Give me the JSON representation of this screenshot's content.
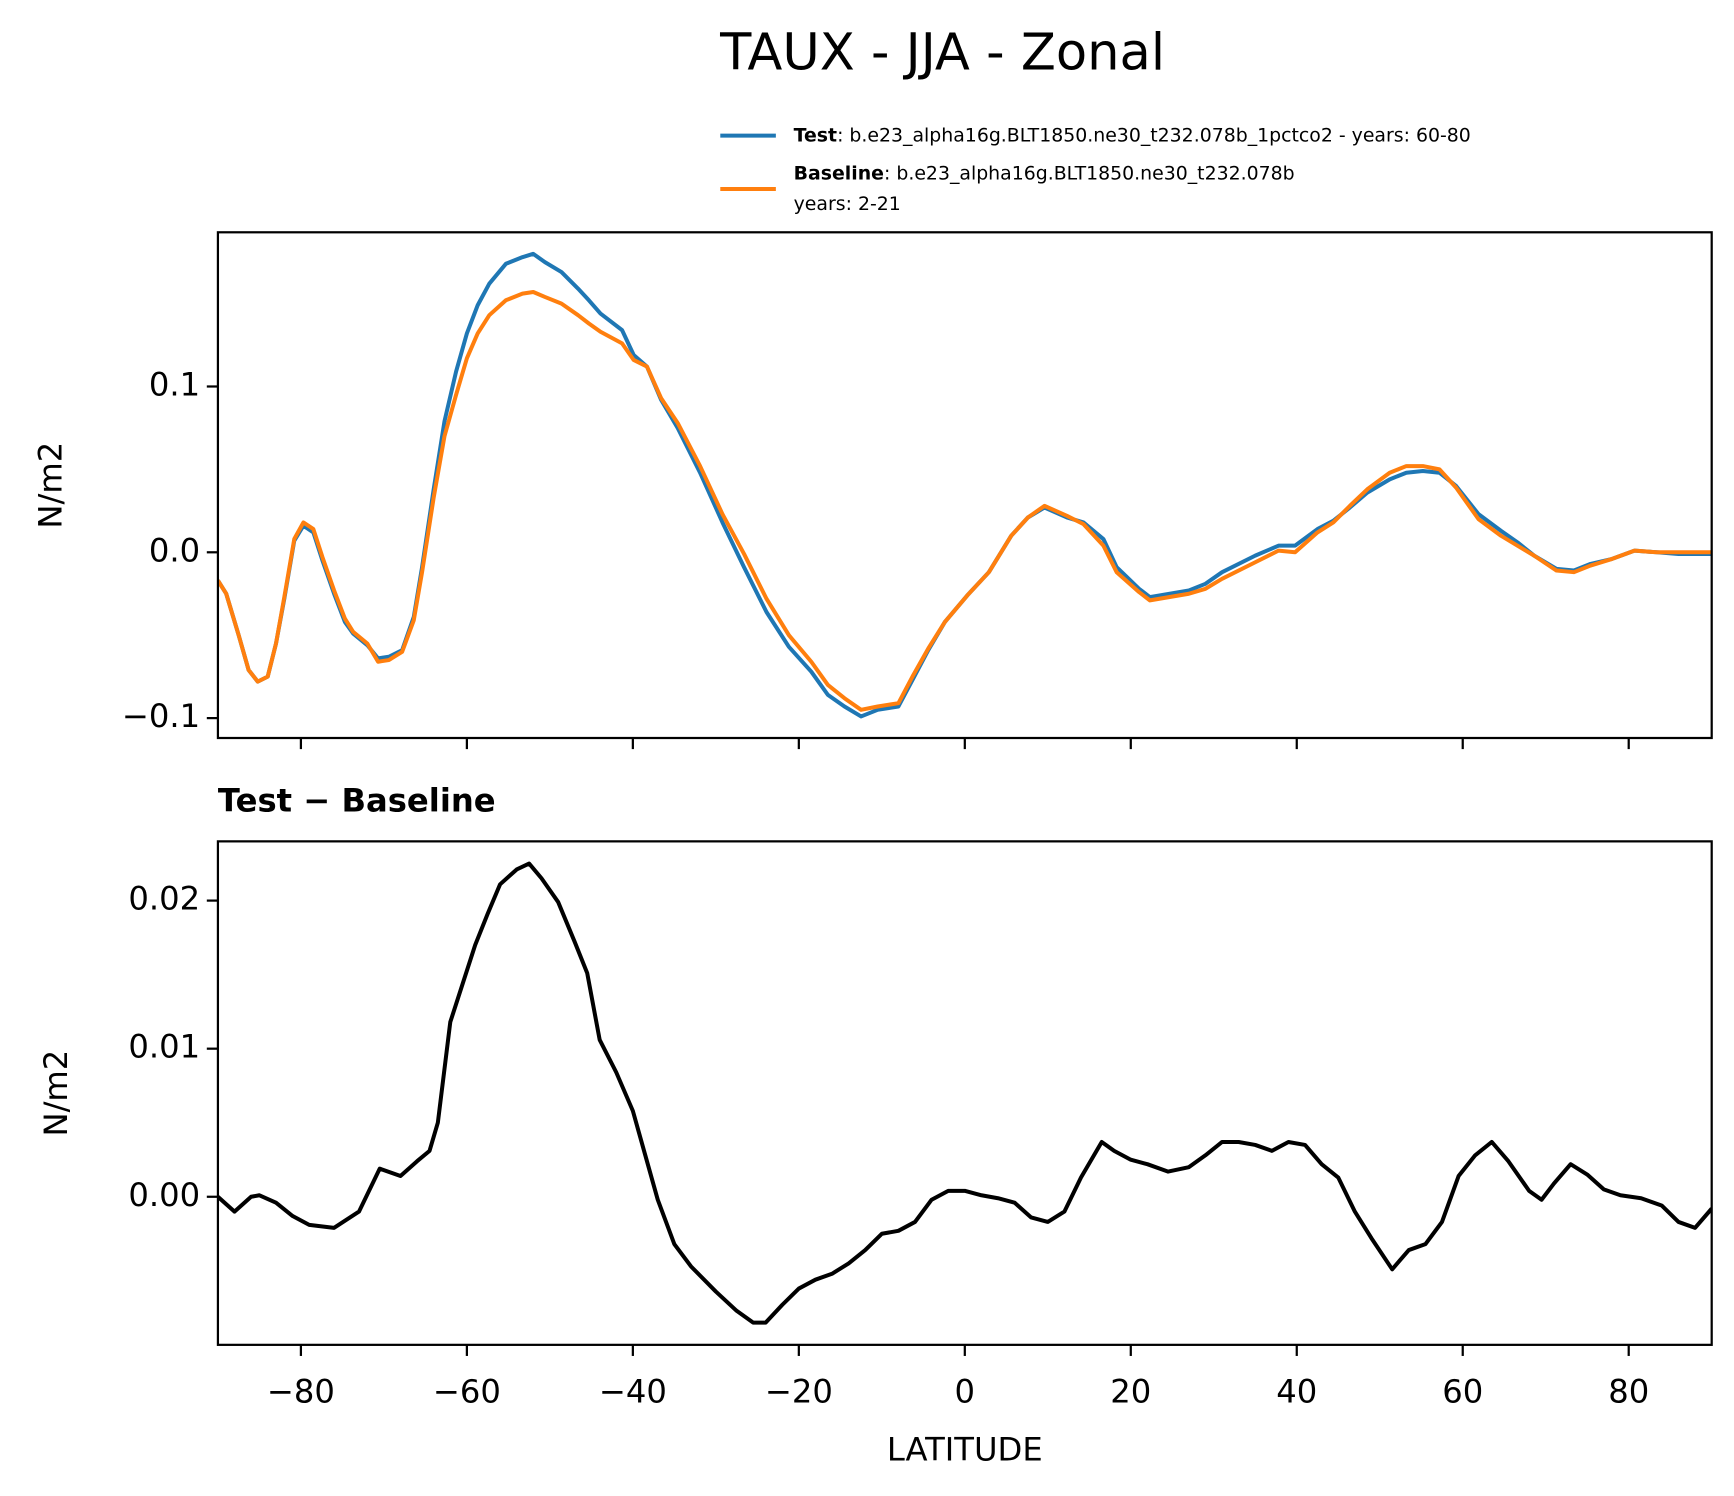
{
  "title": "TAUX - JJA - Zonal",
  "chart_data": [
    {
      "type": "line",
      "ylabel": "N/m2",
      "x": [
        -90,
        -89,
        -87.5,
        -86.3,
        -85.2,
        -84,
        -83,
        -82,
        -80.8,
        -79.7,
        -78.5,
        -77.4,
        -76,
        -74.7,
        -73.7,
        -72,
        -70.7,
        -69.4,
        -67.8,
        -66.4,
        -65.4,
        -64,
        -62.7,
        -61.3,
        -60,
        -58.7,
        -57.3,
        -55.3,
        -53.3,
        -52,
        -50.6,
        -48.6,
        -46.6,
        -45.3,
        -43.9,
        -41.3,
        -39.9,
        -38.3,
        -36.6,
        -34.6,
        -31.9,
        -29.2,
        -26.6,
        -23.9,
        -21.2,
        -18.5,
        -16.5,
        -14.5,
        -12.5,
        -10.5,
        -8,
        -6.2,
        -4.4,
        -2.4,
        0.3,
        2.9,
        5.6,
        7.6,
        9.6,
        12.3,
        14.3,
        16.7,
        18.3,
        21,
        22.3,
        27,
        29,
        31,
        35,
        37.8,
        39.8,
        42.5,
        44.4,
        46.4,
        48.5,
        51.2,
        53.2,
        55.2,
        57.2,
        59.2,
        61.9,
        64.6,
        66.6,
        68.6,
        71.3,
        73.4,
        75.4,
        78,
        80.7,
        83.4,
        86,
        90
      ],
      "series": [
        {
          "name": "Test",
          "description": [
            ": b.e23_alpha16g.BLT1850.ne30_t232.078b_1pctco2 - years: 60-80"
          ],
          "color": "#1f77b4",
          "values": [
            -0.017,
            -0.025,
            -0.05,
            -0.071,
            -0.078,
            -0.075,
            -0.055,
            -0.028,
            0.007,
            0.016,
            0.012,
            -0.005,
            -0.025,
            -0.042,
            -0.049,
            -0.056,
            -0.064,
            -0.063,
            -0.059,
            -0.039,
            -0.009,
            0.038,
            0.079,
            0.109,
            0.132,
            0.149,
            0.162,
            0.174,
            0.178,
            0.18,
            0.175,
            0.169,
            0.159,
            0.152,
            0.144,
            0.134,
            0.119,
            0.112,
            0.092,
            0.075,
            0.048,
            0.018,
            -0.009,
            -0.036,
            -0.057,
            -0.072,
            -0.086,
            -0.093,
            -0.099,
            -0.095,
            -0.093,
            -0.076,
            -0.059,
            -0.042,
            -0.026,
            -0.012,
            0.01,
            0.021,
            0.027,
            0.021,
            0.018,
            0.008,
            -0.009,
            -0.022,
            -0.027,
            -0.023,
            -0.019,
            -0.012,
            -0.002,
            0.004,
            0.004,
            0.014,
            0.019,
            0.027,
            0.036,
            0.044,
            0.048,
            0.049,
            0.048,
            0.04,
            0.023,
            0.013,
            0.006,
            -0.002,
            -0.01,
            -0.011,
            -0.007,
            -0.004,
            0.001,
            0,
            -0.001,
            -0.001
          ]
        },
        {
          "name": "Baseline",
          "description": [
            ": b.e23_alpha16g.BLT1850.ne30_t232.078b",
            "years: 2-21"
          ],
          "color": "#ff7f0e",
          "values": [
            -0.017,
            -0.025,
            -0.05,
            -0.071,
            -0.078,
            -0.075,
            -0.055,
            -0.027,
            0.008,
            0.018,
            0.014,
            -0.003,
            -0.023,
            -0.04,
            -0.048,
            -0.055,
            -0.066,
            -0.065,
            -0.06,
            -0.041,
            -0.012,
            0.033,
            0.07,
            0.095,
            0.117,
            0.132,
            0.143,
            0.152,
            0.156,
            0.157,
            0.154,
            0.15,
            0.143,
            0.138,
            0.133,
            0.126,
            0.116,
            0.112,
            0.093,
            0.078,
            0.052,
            0.023,
            -0.001,
            -0.028,
            -0.05,
            -0.066,
            -0.08,
            -0.088,
            -0.095,
            -0.093,
            -0.091,
            -0.074,
            -0.058,
            -0.042,
            -0.026,
            -0.012,
            0.01,
            0.021,
            0.028,
            0.022,
            0.017,
            0.004,
            -0.012,
            -0.024,
            -0.029,
            -0.025,
            -0.022,
            -0.016,
            -0.006,
            0.001,
            0,
            0.012,
            0.018,
            0.028,
            0.038,
            0.048,
            0.052,
            0.052,
            0.05,
            0.039,
            0.02,
            0.01,
            0.004,
            -0.002,
            -0.011,
            -0.012,
            -0.008,
            -0.004,
            0.001,
            0,
            0,
            0
          ]
        }
      ],
      "xlim": [
        -90,
        90
      ],
      "xticks": [
        -80,
        -60,
        -40,
        -20,
        0,
        20,
        40,
        60,
        80
      ],
      "ylim": [
        -0.112,
        0.193
      ],
      "yticks": [
        {
          "value": -0.1,
          "label": "−0.1"
        },
        {
          "value": 0,
          "label": "0.0"
        },
        {
          "value": 0.1,
          "label": "0.1"
        }
      ]
    },
    {
      "type": "line",
      "title": "Test − Baseline",
      "xlabel": "LATITUDE",
      "ylabel": "N/m2",
      "x": [
        -90,
        -88,
        -86,
        -85,
        -83,
        -81,
        -79,
        -76,
        -73,
        -70.5,
        -68,
        -66,
        -64.5,
        -63.5,
        -62,
        -60.5,
        -59,
        -57.5,
        -56,
        -54,
        -52.5,
        -51,
        -49,
        -47,
        -45.5,
        -44,
        -42,
        -40,
        -38.5,
        -37,
        -35,
        -33,
        -30,
        -27.5,
        -25.5,
        -24,
        -22,
        -20,
        -18,
        -16,
        -14,
        -12,
        -10,
        -8,
        -6,
        -4,
        -2,
        0,
        2,
        4,
        6,
        8,
        10,
        12,
        14,
        16.5,
        18,
        20,
        22,
        24.5,
        27,
        29,
        31,
        33,
        35,
        37,
        39,
        41,
        43,
        45,
        47,
        49,
        51.5,
        53.5,
        55.5,
        57.5,
        59.5,
        61.5,
        63.5,
        65.5,
        68,
        69.5,
        71,
        73,
        75,
        77,
        79,
        81.5,
        84,
        86,
        88,
        90
      ],
      "series": [
        {
          "color": "#000000",
          "values": [
            0,
            -0.001,
            0,
            0.0001,
            -0.0004,
            -0.0013,
            -0.0019,
            -0.0021,
            -0.001,
            0.0019,
            0.0014,
            0.0024,
            0.0031,
            0.005,
            0.0118,
            0.0144,
            0.017,
            0.0191,
            0.0211,
            0.0221,
            0.0225,
            0.0215,
            0.0199,
            0.0172,
            0.0151,
            0.0106,
            0.0084,
            0.0058,
            0.0028,
            -0.0002,
            -0.0032,
            -0.0047,
            -0.0064,
            -0.0077,
            -0.0085,
            -0.0085,
            -0.0073,
            -0.0062,
            -0.0056,
            -0.0052,
            -0.0045,
            -0.0036,
            -0.0025,
            -0.0023,
            -0.0017,
            -0.0002,
            0.0004,
            0.0004,
            0.0001,
            -0.0001,
            -0.0004,
            -0.0014,
            -0.0017,
            -0.001,
            0.0013,
            0.0037,
            0.0031,
            0.0025,
            0.0022,
            0.0017,
            0.002,
            0.0028,
            0.0037,
            0.0037,
            0.0035,
            0.0031,
            0.0037,
            0.0035,
            0.0022,
            0.0013,
            -0.001,
            -0.0028,
            -0.0049,
            -0.0036,
            -0.0032,
            -0.0017,
            0.0014,
            0.0028,
            0.0037,
            0.0024,
            0.0004,
            -0.0002,
            0.0009,
            0.0022,
            0.0015,
            0.0005,
            0.0001,
            -0.0001,
            -0.0006,
            -0.0017,
            -0.0021,
            -0.0008
          ]
        }
      ],
      "xlim": [
        -90,
        90
      ],
      "xticks": [
        {
          "value": -80,
          "label": "−80"
        },
        {
          "value": -60,
          "label": "−60"
        },
        {
          "value": -40,
          "label": "−40"
        },
        {
          "value": -20,
          "label": "−20"
        },
        0,
        20,
        40,
        60,
        80
      ],
      "ylim": [
        -0.01,
        0.024
      ],
      "yticks": [
        {
          "value": 0,
          "label": "0.00"
        },
        {
          "value": 0.01,
          "label": "0.01"
        },
        {
          "value": 0.02,
          "label": "0.02"
        }
      ]
    }
  ]
}
